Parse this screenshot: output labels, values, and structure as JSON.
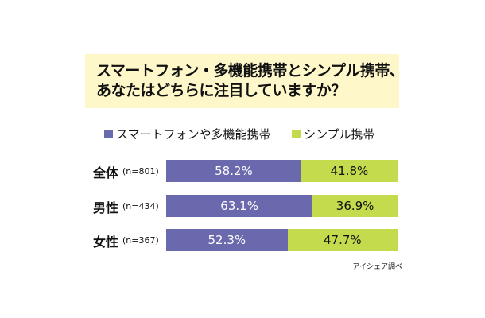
{
  "title": {
    "line1": "スマートフォン・多機能携帯とシンプル携帯、",
    "line2": "あなたはどちらに注目していますか？"
  },
  "source": "アイシェア調べ",
  "colors": {
    "smart": "#6b69ad",
    "simple": "#c4db4e",
    "title_bg": "#fdf7c9"
  },
  "chart_data": {
    "type": "bar",
    "orientation": "horizontal",
    "stacked": true,
    "percent": true,
    "categories": [
      "全体",
      "男性",
      "女性"
    ],
    "sample_sizes": [
      "(n=801)",
      "(n=434)",
      "(n=367)"
    ],
    "series": [
      {
        "name": "スマートフォンや多機能携帯",
        "values": [
          58.2,
          63.1,
          52.3
        ],
        "labels": [
          "58.2%",
          "63.1%",
          "52.3%"
        ]
      },
      {
        "name": "シンプル携帯",
        "values": [
          41.8,
          36.9,
          47.7
        ],
        "labels": [
          "41.8%",
          "36.9%",
          "47.7%"
        ]
      }
    ],
    "xlim": [
      0,
      100
    ],
    "legend": "top"
  }
}
